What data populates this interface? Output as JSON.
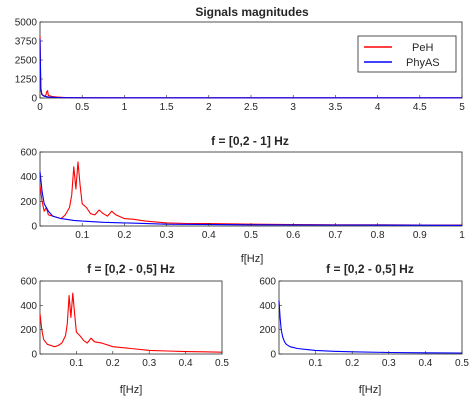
{
  "colors": {
    "peh": "#ff0000",
    "phyas": "#0000ff",
    "axis": "#262626"
  },
  "chart_data": [
    {
      "id": "p1",
      "type": "line",
      "title": "Signals magnitudes",
      "xlabel": "",
      "xlim": [
        0,
        5
      ],
      "ylim": [
        0,
        5000
      ],
      "xticks": [
        0,
        0.5,
        1,
        1.5,
        2,
        2.5,
        3,
        3.5,
        4,
        4.5,
        5
      ],
      "xticklabels": [
        "0",
        "0.5",
        "1",
        "1.5",
        "2",
        "2.5",
        "3",
        "3.5",
        "4",
        "4.5",
        "5"
      ],
      "yticks": [
        0,
        1250,
        2500,
        3750,
        5000
      ],
      "yticklabels": [
        "0",
        "1250",
        "2500",
        "3750",
        "5000"
      ],
      "legend": {
        "position": "top-right",
        "entries": [
          "PeH",
          "PhyAS"
        ]
      },
      "series": [
        {
          "name": "PeH",
          "color": "#ff0000",
          "x": [
            0,
            0.01,
            0.02,
            0.03,
            0.05,
            0.07,
            0.08,
            0.09,
            0.1,
            0.12,
            0.15,
            0.2,
            0.3,
            0.5,
            1,
            2,
            3,
            4,
            5
          ],
          "y": [
            4100,
            700,
            300,
            180,
            120,
            200,
            420,
            480,
            160,
            140,
            90,
            60,
            30,
            20,
            15,
            15,
            15,
            15,
            15
          ]
        },
        {
          "name": "PhyAS",
          "color": "#0000ff",
          "x": [
            0,
            0.01,
            0.02,
            0.05,
            0.1,
            0.2,
            0.5,
            1,
            2,
            3,
            4,
            5
          ],
          "y": [
            3900,
            600,
            250,
            120,
            60,
            30,
            15,
            10,
            10,
            10,
            10,
            10
          ]
        }
      ]
    },
    {
      "id": "p2",
      "type": "line",
      "title": "f = [0,2 - 1] Hz",
      "xlabel": "f[Hz]",
      "xlim": [
        0,
        1
      ],
      "ylim": [
        0,
        600
      ],
      "xticks": [
        0.1,
        0.2,
        0.3,
        0.4,
        0.5,
        0.6,
        0.7,
        0.8,
        0.9,
        1
      ],
      "xticklabels": [
        "0.1",
        "0.2",
        "0.3",
        "0.4",
        "0.5",
        "0.6",
        "0.7",
        "0.8",
        "0.9",
        "1"
      ],
      "yticks": [
        0,
        200,
        400,
        600
      ],
      "yticklabels": [
        "0",
        "200",
        "400",
        "600"
      ],
      "series": [
        {
          "name": "PeH",
          "color": "#ff0000",
          "x": [
            0,
            0.005,
            0.01,
            0.015,
            0.02,
            0.03,
            0.04,
            0.05,
            0.06,
            0.07,
            0.075,
            0.08,
            0.085,
            0.09,
            0.095,
            0.1,
            0.11,
            0.12,
            0.13,
            0.14,
            0.15,
            0.16,
            0.17,
            0.18,
            0.2,
            0.22,
            0.25,
            0.3,
            0.35,
            0.4,
            0.5,
            0.6,
            0.7,
            0.8,
            0.9,
            1
          ],
          "y": [
            330,
            200,
            120,
            150,
            90,
            80,
            70,
            60,
            90,
            150,
            250,
            480,
            300,
            520,
            330,
            180,
            150,
            100,
            90,
            130,
            100,
            80,
            120,
            90,
            60,
            55,
            40,
            25,
            20,
            20,
            15,
            12,
            10,
            10,
            8,
            8
          ]
        },
        {
          "name": "PhyAS",
          "color": "#0000ff",
          "x": [
            0,
            0.005,
            0.01,
            0.02,
            0.03,
            0.05,
            0.08,
            0.1,
            0.15,
            0.2,
            0.3,
            0.5,
            0.7,
            1
          ],
          "y": [
            440,
            280,
            180,
            120,
            80,
            60,
            45,
            40,
            30,
            25,
            15,
            10,
            8,
            6
          ]
        }
      ]
    },
    {
      "id": "p3",
      "type": "line",
      "title": "f = [0,2 - 0,5] Hz",
      "xlabel": "f[Hz]",
      "xlim": [
        0,
        0.5
      ],
      "ylim": [
        0,
        600
      ],
      "xticks": [
        0.1,
        0.2,
        0.3,
        0.4,
        0.5
      ],
      "xticklabels": [
        "0.1",
        "0.2",
        "0.3",
        "0.4",
        "0.5"
      ],
      "yticks": [
        0,
        200,
        400,
        600
      ],
      "yticklabels": [
        "0",
        "200",
        "400",
        "600"
      ],
      "series": [
        {
          "name": "PeH",
          "color": "#ff0000",
          "x": [
            0,
            0.005,
            0.01,
            0.02,
            0.03,
            0.04,
            0.05,
            0.06,
            0.07,
            0.075,
            0.08,
            0.085,
            0.09,
            0.095,
            0.1,
            0.11,
            0.12,
            0.13,
            0.14,
            0.15,
            0.17,
            0.2,
            0.25,
            0.3,
            0.35,
            0.4,
            0.45,
            0.5
          ],
          "y": [
            330,
            200,
            120,
            80,
            70,
            60,
            70,
            90,
            150,
            250,
            480,
            300,
            500,
            330,
            180,
            150,
            110,
            90,
            130,
            100,
            90,
            60,
            45,
            30,
            25,
            20,
            18,
            15
          ]
        }
      ]
    },
    {
      "id": "p4",
      "type": "line",
      "title": "f = [0,2 - 0,5] Hz",
      "xlabel": "f[Hz]",
      "xlim": [
        0,
        0.5
      ],
      "ylim": [
        0,
        600
      ],
      "xticks": [
        0.1,
        0.2,
        0.3,
        0.4,
        0.5
      ],
      "xticklabels": [
        "0.1",
        "0.2",
        "0.3",
        "0.4",
        "0.5"
      ],
      "yticks": [
        0,
        200,
        400,
        600
      ],
      "yticklabels": [
        "0",
        "200",
        "400",
        "600"
      ],
      "series": [
        {
          "name": "PhyAS",
          "color": "#0000ff",
          "x": [
            0,
            0.003,
            0.006,
            0.01,
            0.015,
            0.02,
            0.03,
            0.05,
            0.08,
            0.1,
            0.15,
            0.2,
            0.3,
            0.4,
            0.5
          ],
          "y": [
            440,
            300,
            200,
            140,
            100,
            80,
            60,
            45,
            35,
            30,
            22,
            18,
            12,
            10,
            8
          ]
        }
      ]
    }
  ]
}
